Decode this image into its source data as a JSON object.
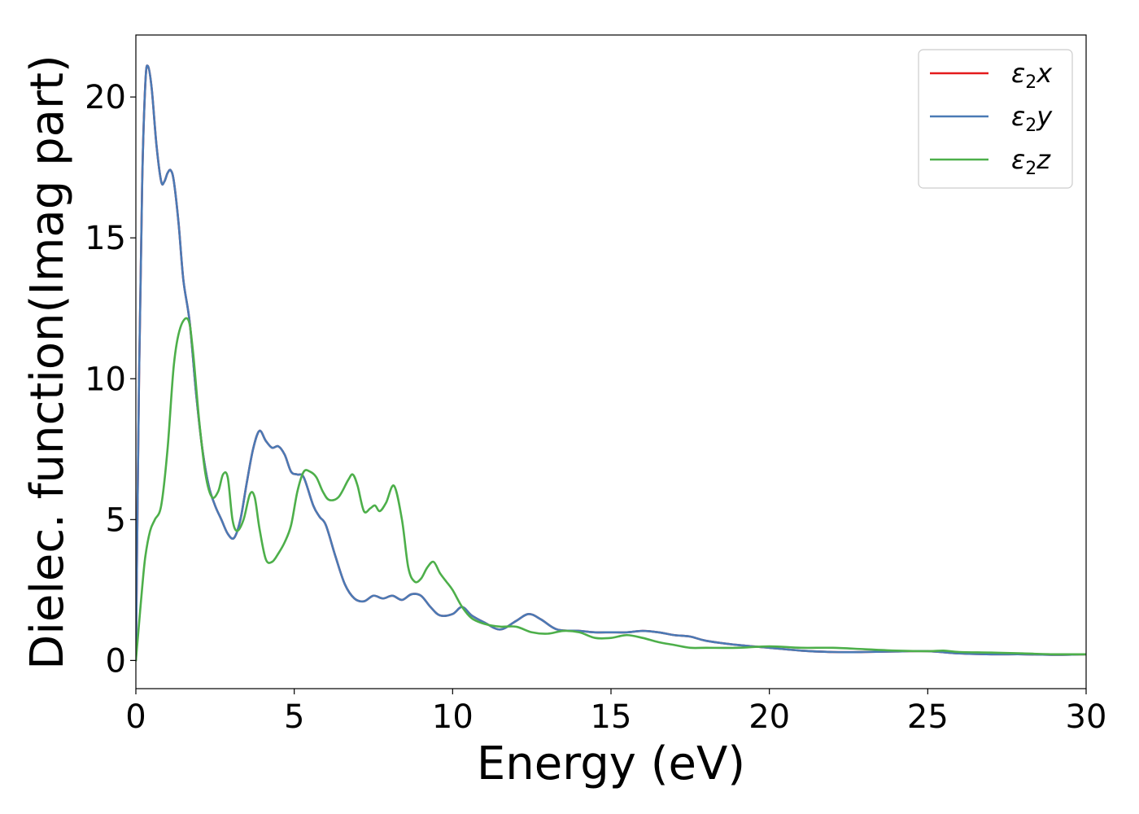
{
  "chart_data": {
    "type": "line",
    "xlabel": "Energy (eV)",
    "ylabel": "Dielec. function(Imag part)",
    "xlim": [
      0,
      30
    ],
    "ylim": [
      -1,
      22.2
    ],
    "xticks": [
      0,
      5,
      10,
      15,
      20,
      25,
      30
    ],
    "yticks": [
      0,
      5,
      10,
      15,
      20
    ],
    "grid": false,
    "legend_position": "top-right",
    "series": [
      {
        "name": "ε2x",
        "legend_symbol": "ε",
        "legend_sub": "2",
        "legend_axis": "x",
        "color": "#e41a1c",
        "x": [
          0,
          0.1,
          0.2,
          0.3,
          0.38,
          0.5,
          0.65,
          0.8,
          0.9,
          1.0,
          1.1,
          1.2,
          1.35,
          1.5,
          1.7,
          1.9,
          2.1,
          2.3,
          2.5,
          2.7,
          2.9,
          3.1,
          3.3,
          3.5,
          3.7,
          3.9,
          4.1,
          4.3,
          4.5,
          4.7,
          4.9,
          5.1,
          5.3,
          5.6,
          5.8,
          6.0,
          6.3,
          6.6,
          6.9,
          7.2,
          7.5,
          7.8,
          8.1,
          8.4,
          8.7,
          9.0,
          9.3,
          9.6,
          10.0,
          10.3,
          10.6,
          11.0,
          11.5,
          12.0,
          12.4,
          12.8,
          13.3,
          14.0,
          14.5,
          15.0,
          15.5,
          16.0,
          16.5,
          17.0,
          17.5,
          18.0,
          19.0,
          20.0,
          21.0,
          22.0,
          23.0,
          24.0,
          25.0,
          26.0,
          27.0,
          28.0,
          29.0,
          30.0
        ],
        "y": [
          0,
          10,
          17,
          20.5,
          21.1,
          20.3,
          18.3,
          17.0,
          17.0,
          17.3,
          17.4,
          17.0,
          15.5,
          13.5,
          12.0,
          9.5,
          7.5,
          6.2,
          5.5,
          5.0,
          4.5,
          4.35,
          5.0,
          6.3,
          7.5,
          8.15,
          7.8,
          7.55,
          7.6,
          7.3,
          6.7,
          6.6,
          6.5,
          5.5,
          5.1,
          4.8,
          3.7,
          2.7,
          2.2,
          2.1,
          2.3,
          2.2,
          2.3,
          2.15,
          2.35,
          2.3,
          1.9,
          1.6,
          1.65,
          1.9,
          1.6,
          1.35,
          1.1,
          1.4,
          1.65,
          1.45,
          1.1,
          1.05,
          1.0,
          1.0,
          1.0,
          1.05,
          1.0,
          0.9,
          0.85,
          0.7,
          0.55,
          0.45,
          0.35,
          0.3,
          0.3,
          0.32,
          0.33,
          0.25,
          0.22,
          0.22,
          0.2,
          0.22
        ]
      },
      {
        "name": "ε2y",
        "legend_symbol": "ε",
        "legend_sub": "2",
        "legend_axis": "y",
        "color": "#4a7ab5",
        "x": [
          0,
          0.1,
          0.2,
          0.3,
          0.38,
          0.5,
          0.65,
          0.8,
          0.9,
          1.0,
          1.1,
          1.2,
          1.35,
          1.5,
          1.7,
          1.9,
          2.1,
          2.3,
          2.5,
          2.7,
          2.9,
          3.1,
          3.3,
          3.5,
          3.7,
          3.9,
          4.1,
          4.3,
          4.5,
          4.7,
          4.9,
          5.1,
          5.3,
          5.6,
          5.8,
          6.0,
          6.3,
          6.6,
          6.9,
          7.2,
          7.5,
          7.8,
          8.1,
          8.4,
          8.7,
          9.0,
          9.3,
          9.6,
          10.0,
          10.3,
          10.6,
          11.0,
          11.5,
          12.0,
          12.4,
          12.8,
          13.3,
          14.0,
          14.5,
          15.0,
          15.5,
          16.0,
          16.5,
          17.0,
          17.5,
          18.0,
          19.0,
          20.0,
          21.0,
          22.0,
          23.0,
          24.0,
          25.0,
          26.0,
          27.0,
          28.0,
          29.0,
          30.0
        ],
        "y": [
          0,
          10,
          17,
          20.5,
          21.1,
          20.3,
          18.3,
          17.0,
          17.0,
          17.3,
          17.4,
          17.0,
          15.5,
          13.5,
          12.0,
          9.5,
          7.5,
          6.2,
          5.5,
          5.0,
          4.5,
          4.35,
          5.0,
          6.3,
          7.5,
          8.15,
          7.8,
          7.55,
          7.6,
          7.3,
          6.7,
          6.6,
          6.5,
          5.5,
          5.1,
          4.8,
          3.7,
          2.7,
          2.2,
          2.1,
          2.3,
          2.2,
          2.3,
          2.15,
          2.35,
          2.3,
          1.9,
          1.6,
          1.65,
          1.9,
          1.6,
          1.35,
          1.1,
          1.4,
          1.65,
          1.45,
          1.1,
          1.05,
          1.0,
          1.0,
          1.0,
          1.05,
          1.0,
          0.9,
          0.85,
          0.7,
          0.55,
          0.45,
          0.35,
          0.3,
          0.3,
          0.32,
          0.33,
          0.25,
          0.22,
          0.22,
          0.2,
          0.22
        ]
      },
      {
        "name": "ε2z",
        "legend_symbol": "ε",
        "legend_sub": "2",
        "legend_axis": "z",
        "color": "#4daf4a",
        "x": [
          0,
          0.1,
          0.2,
          0.3,
          0.45,
          0.6,
          0.8,
          1.0,
          1.2,
          1.4,
          1.65,
          1.8,
          2.0,
          2.2,
          2.4,
          2.6,
          2.75,
          2.9,
          3.05,
          3.2,
          3.4,
          3.6,
          3.75,
          3.9,
          4.1,
          4.3,
          4.5,
          4.7,
          4.9,
          5.1,
          5.3,
          5.5,
          5.7,
          5.9,
          6.1,
          6.4,
          6.7,
          6.85,
          7.0,
          7.2,
          7.4,
          7.55,
          7.7,
          7.9,
          8.15,
          8.4,
          8.6,
          8.8,
          9.0,
          9.2,
          9.4,
          9.6,
          9.8,
          10.0,
          10.3,
          10.6,
          11.0,
          11.5,
          12.0,
          12.5,
          13.0,
          13.5,
          14.0,
          14.5,
          15.0,
          15.5,
          16.0,
          16.5,
          17.0,
          17.5,
          18.0,
          19.0,
          20.0,
          21.0,
          22.0,
          23.0,
          24.0,
          25.0,
          25.5,
          26.0,
          27.0,
          28.0,
          29.0,
          30.0
        ],
        "y": [
          0,
          1.3,
          2.6,
          3.7,
          4.6,
          5.0,
          5.5,
          7.5,
          10.5,
          11.8,
          12.1,
          11.0,
          8.5,
          6.6,
          5.8,
          6.0,
          6.6,
          6.5,
          5.0,
          4.6,
          5.0,
          5.9,
          5.8,
          4.7,
          3.6,
          3.5,
          3.8,
          4.2,
          4.8,
          6.0,
          6.7,
          6.7,
          6.5,
          6.0,
          5.7,
          5.8,
          6.4,
          6.6,
          6.2,
          5.3,
          5.4,
          5.5,
          5.3,
          5.6,
          6.2,
          5.0,
          3.3,
          2.8,
          2.9,
          3.3,
          3.5,
          3.1,
          2.8,
          2.5,
          1.9,
          1.5,
          1.3,
          1.2,
          1.2,
          1.0,
          0.95,
          1.05,
          1.0,
          0.8,
          0.8,
          0.9,
          0.8,
          0.65,
          0.55,
          0.45,
          0.45,
          0.45,
          0.5,
          0.45,
          0.45,
          0.4,
          0.35,
          0.33,
          0.35,
          0.3,
          0.28,
          0.25,
          0.22,
          0.22
        ]
      }
    ]
  }
}
